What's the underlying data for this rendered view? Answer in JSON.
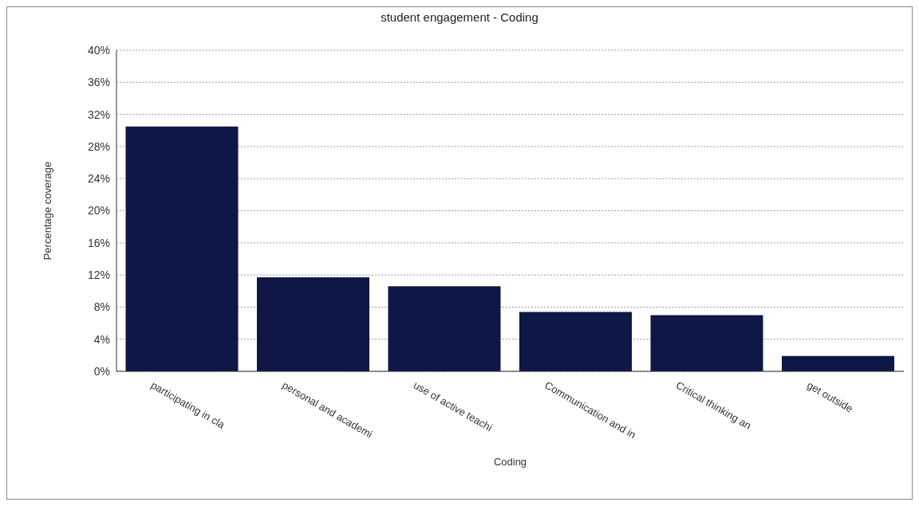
{
  "chart_data": {
    "type": "bar",
    "title": "student engagement - Coding",
    "xlabel": "Coding",
    "ylabel": "Percentage coverage",
    "categories": [
      "participating in cla",
      "personal and academi",
      "use of active teachi",
      "Communication and in",
      "Critical thinking an",
      "get outside"
    ],
    "values": [
      30.5,
      11.7,
      10.6,
      7.4,
      7.0,
      1.9
    ],
    "color": "#0e1745",
    "ylim": [
      0,
      40
    ],
    "yticks": [
      {
        "value": 0,
        "label": "0%"
      },
      {
        "value": 4,
        "label": "4%"
      },
      {
        "value": 8,
        "label": "8%"
      },
      {
        "value": 12,
        "label": "12%"
      },
      {
        "value": 16,
        "label": "16%"
      },
      {
        "value": 20,
        "label": "20%"
      },
      {
        "value": 24,
        "label": "24%"
      },
      {
        "value": 28,
        "label": "28%"
      },
      {
        "value": 32,
        "label": "32%"
      },
      {
        "value": 36,
        "label": "36%"
      },
      {
        "value": 40,
        "label": "40%"
      }
    ],
    "grid": "y",
    "legend": false
  }
}
